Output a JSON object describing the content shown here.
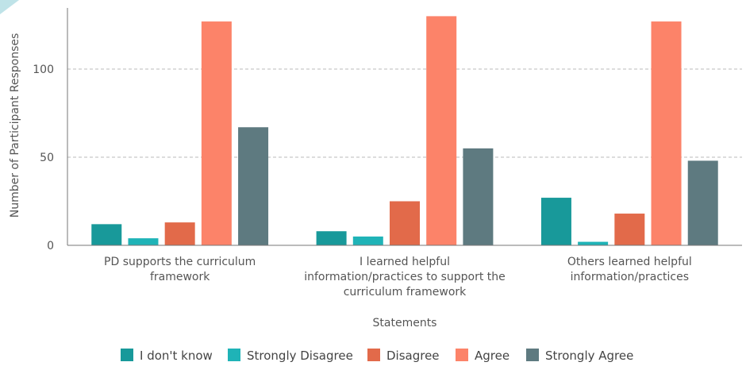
{
  "chart_data": {
    "type": "bar",
    "title": "",
    "xlabel": "Statements",
    "ylabel": "Number of Participant Responses",
    "ylim": [
      0,
      130
    ],
    "yticks": [
      0,
      50,
      100
    ],
    "grid": true,
    "legend_position": "bottom",
    "categories": [
      [
        "PD supports the curriculum",
        "framework"
      ],
      [
        "I learned helpful",
        "information/practices to support the",
        "curriculum framework"
      ],
      [
        "Others learned helpful",
        "information/practices"
      ]
    ],
    "series": [
      {
        "name": "I don't know",
        "color": "#18999a",
        "values": [
          12,
          8,
          27
        ]
      },
      {
        "name": "Strongly Disagree",
        "color": "#1fb3b7",
        "values": [
          4,
          5,
          2
        ]
      },
      {
        "name": "Disagree",
        "color": "#e26a4a",
        "values": [
          13,
          25,
          18
        ]
      },
      {
        "name": "Agree",
        "color": "#fc8369",
        "values": [
          127,
          130,
          127
        ]
      },
      {
        "name": "Strongly Agree",
        "color": "#5e7a80",
        "values": [
          67,
          55,
          48
        ]
      }
    ]
  }
}
